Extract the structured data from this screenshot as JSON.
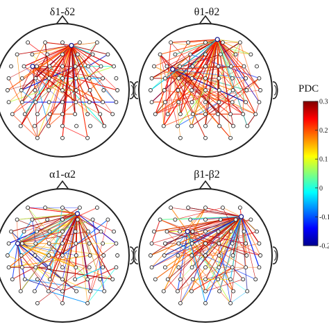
{
  "panels": [
    {
      "title": "δ1-δ2"
    },
    {
      "title": "θ1-θ2"
    },
    {
      "title": "α1-α2"
    },
    {
      "title": "β1-β2"
    }
  ],
  "colorbar": {
    "title": "PDC",
    "ticks": [
      "0.3",
      "0.2",
      "0.1",
      "0",
      "-0.1",
      "-0.2"
    ],
    "range": [
      -0.2,
      0.3
    ],
    "colormap": [
      "#00008f",
      "#0000ff",
      "#00ffff",
      "#ffff00",
      "#ff8000",
      "#ff0000",
      "#800000"
    ]
  }
}
